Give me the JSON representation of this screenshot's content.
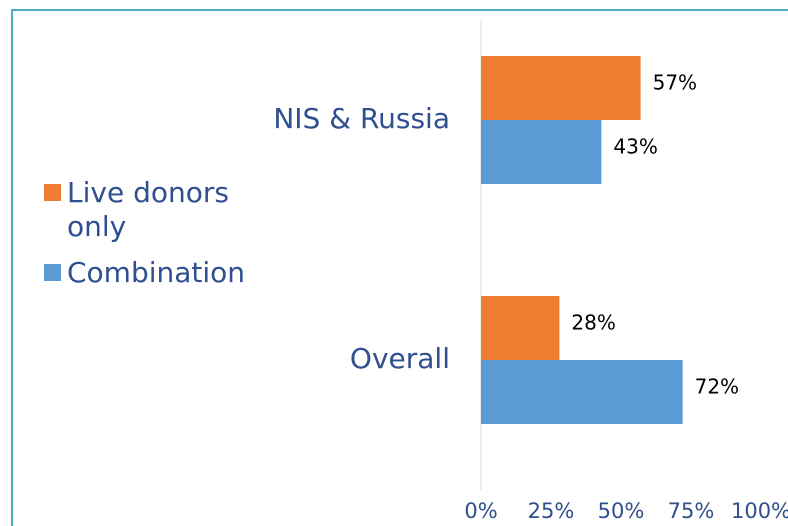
{
  "chart_data": {
    "type": "hbar",
    "categories": [
      "NIS & Russia",
      "Overall"
    ],
    "series": [
      {
        "name": "Live donors only",
        "color": "#ed7d31",
        "values": [
          57,
          28
        ],
        "value_labels": [
          "57%",
          "28%"
        ]
      },
      {
        "name": "Combination",
        "color": "#5b9bd5",
        "values": [
          43,
          72
        ],
        "value_labels": [
          "43%",
          "72%"
        ]
      }
    ],
    "xlim": [
      0,
      100
    ],
    "xticks": [
      {
        "value": 0,
        "label": "0%"
      },
      {
        "value": 25,
        "label": "25%"
      },
      {
        "value": 50,
        "label": "50%"
      },
      {
        "value": 75,
        "label": "75%"
      },
      {
        "value": 100,
        "label": "100%"
      }
    ],
    "legend": "left"
  }
}
